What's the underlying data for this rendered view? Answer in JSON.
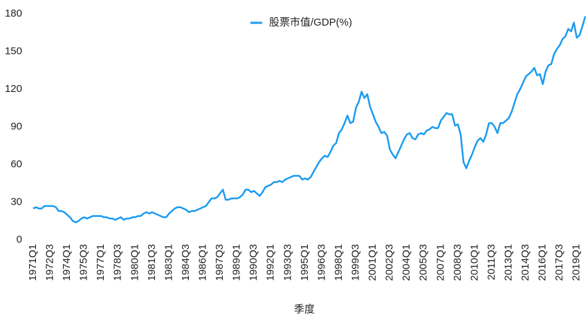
{
  "chart_data": {
    "type": "line",
    "x_label": "季度",
    "legend": "top",
    "grid": false,
    "categories": [
      "1971Q1",
      null,
      null,
      null,
      null,
      null,
      "1972Q3",
      null,
      null,
      null,
      null,
      null,
      "1974Q1",
      null,
      null,
      null,
      null,
      null,
      "1975Q3",
      null,
      null,
      null,
      null,
      null,
      "1977Q1",
      null,
      null,
      null,
      null,
      null,
      "1978Q3",
      null,
      null,
      null,
      null,
      null,
      "1980Q1",
      null,
      null,
      null,
      null,
      null,
      "1981Q3",
      null,
      null,
      null,
      null,
      null,
      "1983Q1",
      null,
      null,
      null,
      null,
      null,
      "1984Q3",
      null,
      null,
      null,
      null,
      null,
      "1986Q1",
      null,
      null,
      null,
      null,
      null,
      "1987Q3",
      null,
      null,
      null,
      null,
      null,
      "1989Q1",
      null,
      null,
      null,
      null,
      null,
      "1990Q3",
      null,
      null,
      null,
      null,
      null,
      "1992Q1",
      null,
      null,
      null,
      null,
      null,
      "1993Q3",
      null,
      null,
      null,
      null,
      null,
      "1995Q1",
      null,
      null,
      null,
      null,
      null,
      "1996Q3",
      null,
      null,
      null,
      null,
      null,
      "1998Q1",
      null,
      null,
      null,
      null,
      null,
      "1999Q3",
      null,
      null,
      null,
      null,
      null,
      "2001Q1",
      null,
      null,
      null,
      null,
      null,
      "2002Q3",
      null,
      null,
      null,
      null,
      null,
      "2004Q1",
      null,
      null,
      null,
      null,
      null,
      "2005Q3",
      null,
      null,
      null,
      null,
      null,
      "2007Q1",
      null,
      null,
      null,
      null,
      null,
      "2008Q3",
      null,
      null,
      null,
      null,
      null,
      "2010Q1",
      null,
      null,
      null,
      null,
      null,
      "2011Q3",
      null,
      null,
      null,
      null,
      null,
      "2013Q1",
      null,
      null,
      null,
      null,
      null,
      "2014Q3",
      null,
      null,
      null,
      null,
      null,
      "2016Q1",
      null,
      null,
      null,
      null,
      null,
      "2017Q3",
      null,
      null,
      null,
      null,
      null,
      "2019Q1",
      null,
      null,
      null
    ],
    "series": [
      {
        "name": "股票市值/GDP(%)",
        "color": "#1a9bf0",
        "values": [
          25,
          26,
          25,
          25,
          27,
          27,
          27,
          27,
          26,
          23,
          23,
          22,
          20,
          18,
          15,
          14,
          15,
          17,
          18,
          17,
          18,
          19,
          19,
          19,
          19,
          18,
          18,
          17,
          17,
          16,
          17,
          18,
          16,
          17,
          17,
          18,
          18,
          19,
          19,
          21,
          22,
          21,
          22,
          21,
          20,
          19,
          18,
          18,
          21,
          23,
          25,
          26,
          26,
          25,
          24,
          22,
          23,
          23,
          24,
          25,
          26,
          27,
          30,
          33,
          33,
          34,
          37,
          40,
          32,
          32,
          33,
          33,
          33,
          34,
          36,
          40,
          40,
          38,
          39,
          37,
          35,
          38,
          42,
          43,
          44,
          46,
          46,
          47,
          46,
          48,
          49,
          50,
          51,
          51,
          51,
          48,
          49,
          48,
          50,
          54,
          58,
          62,
          65,
          67,
          66,
          70,
          75,
          77,
          85,
          88,
          93,
          99,
          93,
          94,
          105,
          110,
          118,
          113,
          116,
          106,
          100,
          94,
          90,
          85,
          86,
          83,
          72,
          68,
          65,
          70,
          75,
          80,
          84,
          85,
          81,
          80,
          84,
          85,
          84,
          87,
          88,
          90,
          89,
          89,
          95,
          98,
          101,
          100,
          100,
          91,
          92,
          84,
          62,
          57,
          63,
          68,
          74,
          79,
          81,
          78,
          84,
          93,
          93,
          90,
          85,
          93,
          93,
          95,
          97,
          102,
          109,
          116,
          120,
          125,
          130,
          132,
          134,
          137,
          131,
          132,
          124,
          134,
          139,
          140,
          148,
          152,
          155,
          160,
          162,
          168,
          166,
          173,
          161,
          163,
          170,
          178
        ]
      }
    ],
    "ylim": [
      0,
      180
    ],
    "yticks": [
      0,
      30,
      60,
      90,
      120,
      150,
      180
    ]
  }
}
